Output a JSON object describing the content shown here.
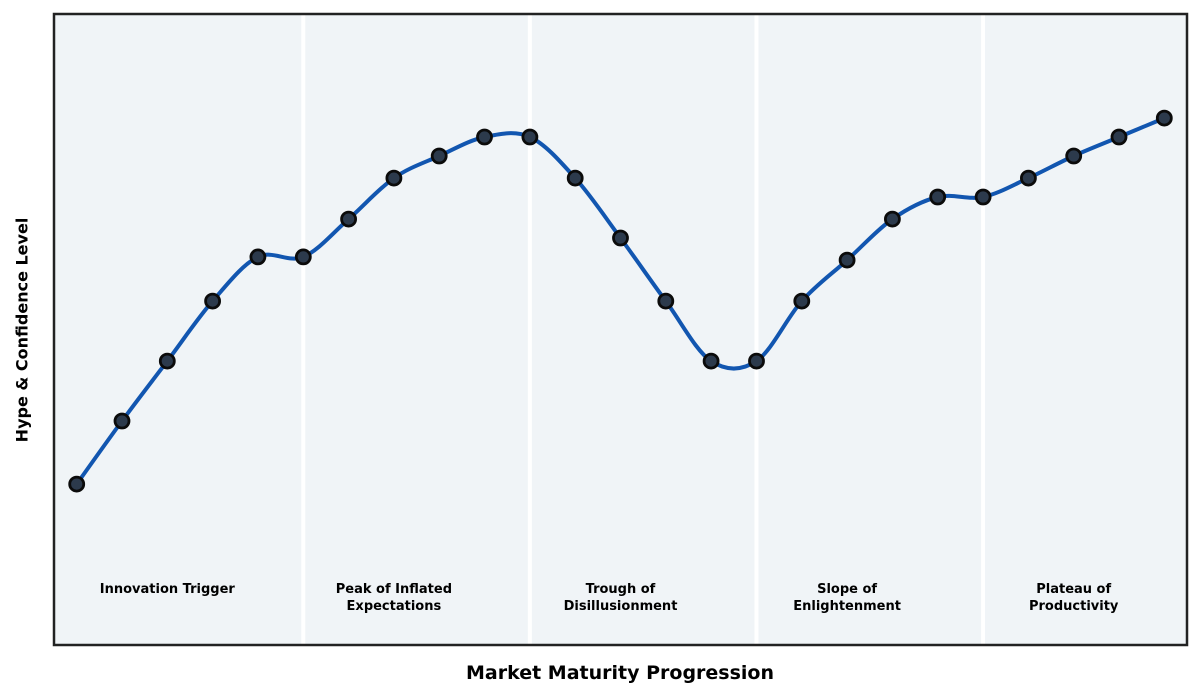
{
  "chart_data": {
    "type": "line",
    "title": "",
    "xlabel": "Market Maturity Progression",
    "ylabel": "Hype & Confidence Level",
    "x": [
      1,
      2,
      3,
      4,
      5,
      6,
      7,
      8,
      9,
      10,
      11,
      12,
      13,
      14,
      15,
      16,
      17,
      18,
      19,
      20,
      21,
      22,
      23,
      24,
      25
    ],
    "values": [
      25.5,
      35.5,
      45,
      54.5,
      61.5,
      61.5,
      67.5,
      74,
      77.5,
      80.5,
      80.5,
      74,
      64.5,
      54.5,
      45,
      45,
      54.5,
      61,
      67.5,
      71,
      71,
      74,
      77.5,
      80.5,
      83.5
    ],
    "xlim": [
      0.5,
      25.5
    ],
    "ylim": [
      0,
      100
    ],
    "grid": false,
    "axis_ticks": "none",
    "legend": "none",
    "curve_style": "smooth-spline",
    "phases": [
      {
        "label": "Innovation Trigger",
        "label_x": 3,
        "boundary_x": 6
      },
      {
        "label": "Peak of Inflated\nExpectations",
        "label_x": 8,
        "boundary_x": 11
      },
      {
        "label": "Trough of\nDisillusionment",
        "label_x": 13,
        "boundary_x": 16
      },
      {
        "label": "Slope of\nEnlightenment",
        "label_x": 18,
        "boundary_x": 21
      },
      {
        "label": "Plateau of\nProductivity",
        "label_x": 23,
        "boundary_x": null
      }
    ],
    "colors": {
      "line": "#1256b0",
      "marker_fill": "#2c3a4c",
      "marker_edge": "#0b0b0b",
      "plot_background": "#f0f4f7",
      "figure_background": "#ffffff",
      "phase_divider": "#ffffff",
      "border": "#222222",
      "text": "#000000"
    }
  }
}
